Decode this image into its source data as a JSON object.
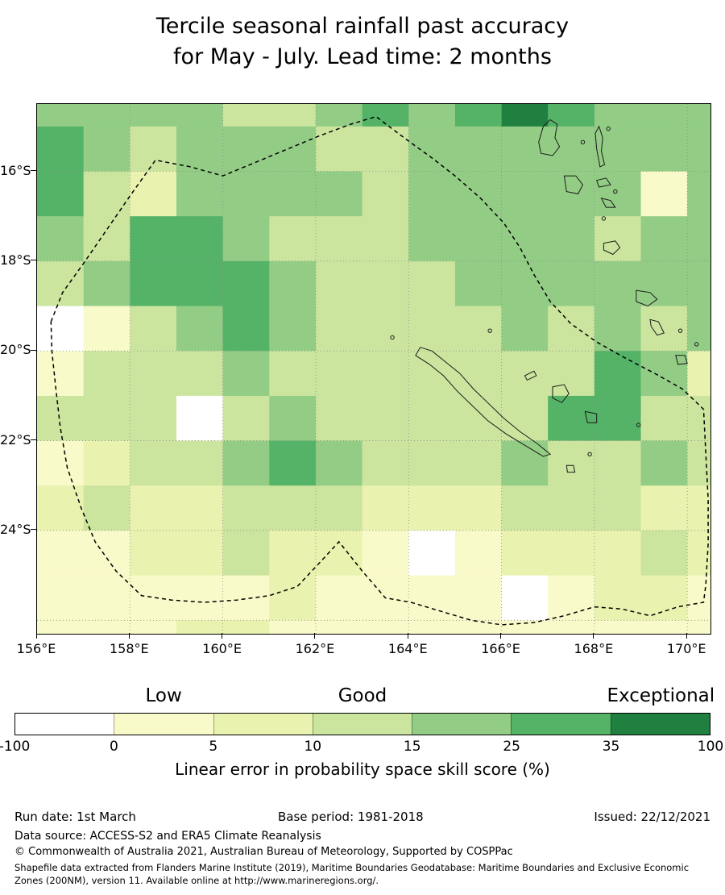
{
  "title": {
    "line1": "Tercile seasonal rainfall past accuracy",
    "line2": "for May - July. Lead time: 2 months"
  },
  "axes": {
    "x_ticks": [
      {
        "label": "156°E",
        "lon": 156
      },
      {
        "label": "158°E",
        "lon": 158
      },
      {
        "label": "160°E",
        "lon": 160
      },
      {
        "label": "162°E",
        "lon": 162
      },
      {
        "label": "164°E",
        "lon": 164
      },
      {
        "label": "166°E",
        "lon": 166
      },
      {
        "label": "168°E",
        "lon": 168
      },
      {
        "label": "170°E",
        "lon": 170
      }
    ],
    "y_ticks": [
      {
        "label": "16°S",
        "lat": 16
      },
      {
        "label": "18°S",
        "lat": 18
      },
      {
        "label": "20°S",
        "lat": 20
      },
      {
        "label": "22°S",
        "lat": 22
      },
      {
        "label": "24°S",
        "lat": 24
      }
    ],
    "grid_lons": [
      158,
      160,
      162,
      164,
      166,
      168,
      170
    ],
    "grid_lats": [
      16,
      18,
      20,
      22,
      24,
      26
    ]
  },
  "colorbar": {
    "category_labels": [
      "Low",
      "Good",
      "Exceptional"
    ],
    "tick_values": [
      "-100",
      "0",
      "5",
      "10",
      "15",
      "25",
      "35",
      "100"
    ],
    "title": "Linear error in probability space skill score (%)",
    "segment_colors": [
      "#ffffff",
      "#f9fac9",
      "#e9f2ae",
      "#cbe59f",
      "#93cd85",
      "#55b367",
      "#20803f"
    ]
  },
  "footer": {
    "run_date": "Run date: 1st March",
    "base_period": "Base period: 1981-2018",
    "issued": "Issued: 22/12/2021",
    "data_source": "Data source: ACCESS-S2 and ERA5 Climate Reanalysis",
    "copyright": "© Commonwealth of Australia 2021, Australian Bureau of Meteorology, Supported by COSPPac",
    "shapefile_note": "Shapefile data extracted from Flanders Marine Institute (2019), Maritime Boundaries Geodatabase: Maritime Boundaries and Exclusive Economic Zones (200NM), version 11. Available online at http://www.marineregions.org/."
  },
  "chart_data": {
    "type": "heatmap",
    "title": "Tercile seasonal rainfall past accuracy for May - July. Lead time: 2 months",
    "xlabel": "",
    "ylabel": "",
    "value_label": "Linear error in probability space skill score (%)",
    "x_range": [
      156,
      170.5
    ],
    "y_range": [
      14.5,
      26.3
    ],
    "lon_start": 156,
    "lat_start": 14,
    "cell_deg": 1,
    "bins": {
      "thresholds": [
        -100,
        0,
        5,
        10,
        15,
        25,
        35,
        100
      ],
      "labels": [
        "-100-0",
        "0-5",
        "5-10",
        "10-15",
        "15-25",
        "25-35",
        "35-100"
      ],
      "colors": [
        "#ffffff",
        "#f9fac9",
        "#e9f2ae",
        "#cbe59f",
        "#93cd85",
        "#55b367",
        "#20803f"
      ]
    },
    "values": [
      [
        20,
        20,
        20,
        20,
        12,
        12,
        20,
        30,
        20,
        30,
        50,
        30,
        20,
        20,
        20
      ],
      [
        30,
        20,
        12,
        20,
        20,
        20,
        12,
        12,
        20,
        20,
        20,
        20,
        20,
        20,
        20
      ],
      [
        30,
        12,
        8,
        20,
        20,
        20,
        20,
        12,
        20,
        20,
        20,
        20,
        20,
        3,
        20
      ],
      [
        20,
        12,
        30,
        30,
        20,
        12,
        12,
        12,
        20,
        20,
        20,
        20,
        12,
        20,
        20
      ],
      [
        12,
        20,
        30,
        30,
        30,
        20,
        12,
        12,
        12,
        20,
        20,
        20,
        20,
        20,
        20
      ],
      [
        -10,
        3,
        12,
        20,
        30,
        20,
        12,
        12,
        12,
        12,
        20,
        12,
        20,
        12,
        20
      ],
      [
        3,
        12,
        12,
        12,
        20,
        12,
        12,
        12,
        12,
        12,
        12,
        12,
        30,
        20,
        8
      ],
      [
        12,
        12,
        12,
        -10,
        12,
        20,
        12,
        12,
        12,
        12,
        12,
        30,
        30,
        12,
        12
      ],
      [
        3,
        8,
        12,
        12,
        20,
        30,
        20,
        12,
        12,
        12,
        20,
        12,
        12,
        20,
        12
      ],
      [
        8,
        12,
        8,
        8,
        12,
        12,
        12,
        8,
        8,
        8,
        12,
        12,
        12,
        8,
        8
      ],
      [
        3,
        3,
        8,
        8,
        12,
        8,
        8,
        3,
        -10,
        3,
        8,
        8,
        8,
        12,
        8
      ],
      [
        3,
        3,
        3,
        3,
        3,
        8,
        3,
        3,
        3,
        3,
        -10,
        3,
        8,
        8,
        3
      ],
      [
        3,
        3,
        3,
        8,
        8,
        3,
        3,
        3,
        3,
        3,
        3,
        3,
        3,
        3,
        3
      ]
    ],
    "eez_boundary": [
      [
        156.3,
        19.35
      ],
      [
        156.55,
        18.7
      ],
      [
        157.0,
        18.05
      ],
      [
        157.5,
        17.3
      ],
      [
        158.0,
        16.55
      ],
      [
        158.55,
        15.75
      ],
      [
        159.3,
        15.9
      ],
      [
        160.0,
        16.1
      ],
      [
        160.7,
        15.8
      ],
      [
        161.4,
        15.5
      ],
      [
        162.1,
        15.2
      ],
      [
        162.75,
        14.95
      ],
      [
        163.3,
        14.78
      ],
      [
        163.9,
        15.25
      ],
      [
        164.5,
        15.7
      ],
      [
        165.0,
        16.1
      ],
      [
        165.55,
        16.6
      ],
      [
        166.05,
        17.15
      ],
      [
        166.4,
        17.7
      ],
      [
        166.7,
        18.3
      ],
      [
        167.05,
        18.9
      ],
      [
        167.5,
        19.4
      ],
      [
        168.05,
        19.8
      ],
      [
        168.65,
        20.15
      ],
      [
        169.3,
        20.5
      ],
      [
        169.9,
        20.85
      ],
      [
        170.35,
        21.3
      ],
      [
        170.4,
        22.3
      ],
      [
        170.45,
        23.3
      ],
      [
        170.45,
        24.3
      ],
      [
        170.4,
        25.2
      ],
      [
        170.35,
        25.6
      ],
      [
        169.8,
        25.7
      ],
      [
        169.2,
        25.9
      ],
      [
        168.6,
        25.75
      ],
      [
        168.0,
        25.7
      ],
      [
        167.35,
        25.9
      ],
      [
        166.7,
        26.05
      ],
      [
        166.0,
        26.1
      ],
      [
        165.35,
        26.0
      ],
      [
        164.7,
        25.8
      ],
      [
        164.05,
        25.6
      ],
      [
        163.5,
        25.5
      ],
      [
        163.0,
        24.9
      ],
      [
        162.5,
        24.25
      ],
      [
        162.1,
        24.7
      ],
      [
        161.6,
        25.25
      ],
      [
        161.0,
        25.45
      ],
      [
        160.3,
        25.55
      ],
      [
        159.6,
        25.6
      ],
      [
        158.9,
        25.55
      ],
      [
        158.25,
        25.45
      ],
      [
        157.7,
        24.9
      ],
      [
        157.25,
        24.25
      ],
      [
        156.95,
        23.5
      ],
      [
        156.65,
        22.6
      ],
      [
        156.5,
        21.7
      ],
      [
        156.4,
        20.8
      ],
      [
        156.32,
        20.0
      ]
    ],
    "islands": [
      {
        "name": "espiritu-santo",
        "points": [
          [
            166.85,
            15.6
          ],
          [
            166.8,
            15.35
          ],
          [
            166.9,
            15.0
          ],
          [
            167.05,
            14.85
          ],
          [
            167.2,
            14.95
          ],
          [
            167.15,
            15.25
          ],
          [
            167.25,
            15.45
          ],
          [
            167.1,
            15.65
          ]
        ]
      },
      {
        "name": "maewo-pentecost",
        "points": [
          [
            168.1,
            15.0
          ],
          [
            168.18,
            15.25
          ],
          [
            168.15,
            15.55
          ],
          [
            168.22,
            15.85
          ],
          [
            168.12,
            15.9
          ],
          [
            168.05,
            15.5
          ],
          [
            168.02,
            15.15
          ]
        ]
      },
      {
        "name": "malakula",
        "points": [
          [
            167.35,
            16.1
          ],
          [
            167.6,
            16.1
          ],
          [
            167.75,
            16.3
          ],
          [
            167.65,
            16.5
          ],
          [
            167.4,
            16.45
          ]
        ]
      },
      {
        "name": "ambrym",
        "points": [
          [
            168.05,
            16.2
          ],
          [
            168.25,
            16.15
          ],
          [
            168.35,
            16.3
          ],
          [
            168.1,
            16.35
          ]
        ]
      },
      {
        "name": "epi",
        "points": [
          [
            168.15,
            16.6
          ],
          [
            168.35,
            16.65
          ],
          [
            168.45,
            16.8
          ],
          [
            168.25,
            16.8
          ]
        ]
      },
      {
        "name": "efate",
        "points": [
          [
            168.2,
            17.6
          ],
          [
            168.45,
            17.55
          ],
          [
            168.55,
            17.7
          ],
          [
            168.4,
            17.85
          ],
          [
            168.2,
            17.75
          ]
        ]
      },
      {
        "name": "erromango",
        "points": [
          [
            168.9,
            18.65
          ],
          [
            169.2,
            18.7
          ],
          [
            169.35,
            18.85
          ],
          [
            169.15,
            19.0
          ],
          [
            168.9,
            18.9
          ]
        ]
      },
      {
        "name": "tanna",
        "points": [
          [
            169.2,
            19.3
          ],
          [
            169.38,
            19.35
          ],
          [
            169.5,
            19.6
          ],
          [
            169.35,
            19.65
          ],
          [
            169.22,
            19.45
          ]
        ]
      },
      {
        "name": "aneityum",
        "points": [
          [
            169.75,
            20.1
          ],
          [
            169.95,
            20.1
          ],
          [
            170.0,
            20.28
          ],
          [
            169.8,
            20.3
          ]
        ]
      },
      {
        "name": "grande-terre",
        "points": [
          [
            164.15,
            20.1
          ],
          [
            164.45,
            20.3
          ],
          [
            164.75,
            20.55
          ],
          [
            165.05,
            20.9
          ],
          [
            165.35,
            21.2
          ],
          [
            165.7,
            21.55
          ],
          [
            166.1,
            21.85
          ],
          [
            166.5,
            22.1
          ],
          [
            166.9,
            22.35
          ],
          [
            167.05,
            22.3
          ],
          [
            166.75,
            22.05
          ],
          [
            166.4,
            21.8
          ],
          [
            166.05,
            21.5
          ],
          [
            165.7,
            21.15
          ],
          [
            165.4,
            20.85
          ],
          [
            165.1,
            20.5
          ],
          [
            164.8,
            20.25
          ],
          [
            164.5,
            20.0
          ],
          [
            164.25,
            19.92
          ]
        ]
      },
      {
        "name": "ouvea",
        "points": [
          [
            166.5,
            20.55
          ],
          [
            166.7,
            20.45
          ],
          [
            166.75,
            20.55
          ],
          [
            166.55,
            20.65
          ]
        ]
      },
      {
        "name": "lifou",
        "points": [
          [
            167.1,
            20.8
          ],
          [
            167.35,
            20.75
          ],
          [
            167.45,
            20.95
          ],
          [
            167.3,
            21.15
          ],
          [
            167.1,
            21.05
          ]
        ]
      },
      {
        "name": "mare",
        "points": [
          [
            167.8,
            21.35
          ],
          [
            168.05,
            21.4
          ],
          [
            168.05,
            21.6
          ],
          [
            167.85,
            21.6
          ]
        ]
      },
      {
        "name": "isle-of-pines",
        "points": [
          [
            167.4,
            22.55
          ],
          [
            167.55,
            22.55
          ],
          [
            167.58,
            22.7
          ],
          [
            167.42,
            22.7
          ]
        ]
      }
    ],
    "islets": [
      [
        163.65,
        19.7
      ],
      [
        165.75,
        19.55
      ],
      [
        167.75,
        15.35
      ],
      [
        168.3,
        15.05
      ],
      [
        168.45,
        16.45
      ],
      [
        168.2,
        17.05
      ],
      [
        169.85,
        19.55
      ],
      [
        170.2,
        19.85
      ],
      [
        168.95,
        21.65
      ],
      [
        167.9,
        22.3
      ]
    ]
  }
}
